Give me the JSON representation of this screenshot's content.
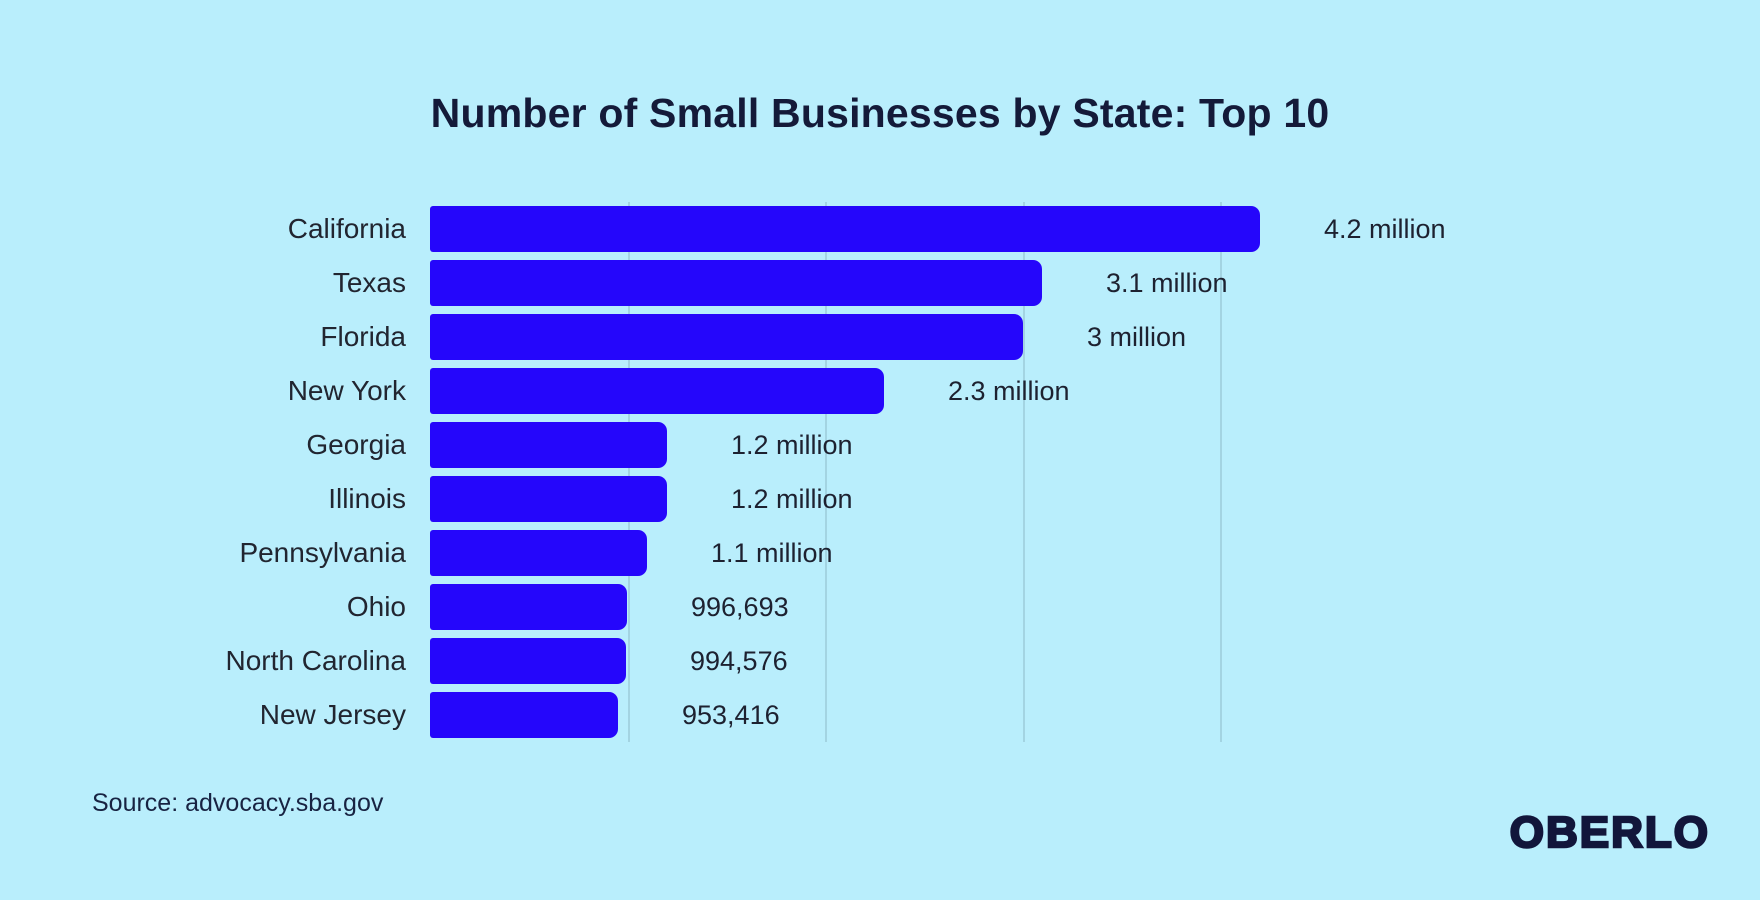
{
  "title": "Number of Small Businesses by State: Top 10",
  "source": "Source: advocacy.sba.gov",
  "logo_text": "OBERLO",
  "colors": {
    "background": "#b9eefc",
    "bar": "#2506fb",
    "title_text": "#141a39",
    "label_text": "#212530",
    "gridline": "#a3d4e2",
    "logo_navy": "#12163b"
  },
  "chart_data": {
    "type": "bar",
    "orientation": "horizontal",
    "title": "Number of Small Businesses by State: Top 10",
    "xlabel": "",
    "ylabel": "",
    "grid": true,
    "legend": false,
    "axis_max": 4200000,
    "gridline_values": [
      1000000,
      2000000,
      3000000,
      4000000
    ],
    "categories": [
      "California",
      "Texas",
      "Florida",
      "New York",
      "Georgia",
      "Illinois",
      "Pennsylvania",
      "Ohio",
      "North Carolina",
      "New Jersey"
    ],
    "values": [
      4200000,
      3100000,
      3000000,
      2300000,
      1200000,
      1200000,
      1100000,
      996693,
      994576,
      953416
    ],
    "value_labels": [
      "4.2 million",
      "3.1 million",
      "3 million",
      "2.3 million",
      "1.2 million",
      "1.2 million",
      "1.1 million",
      "996,693",
      "994,576",
      "953,416"
    ]
  }
}
